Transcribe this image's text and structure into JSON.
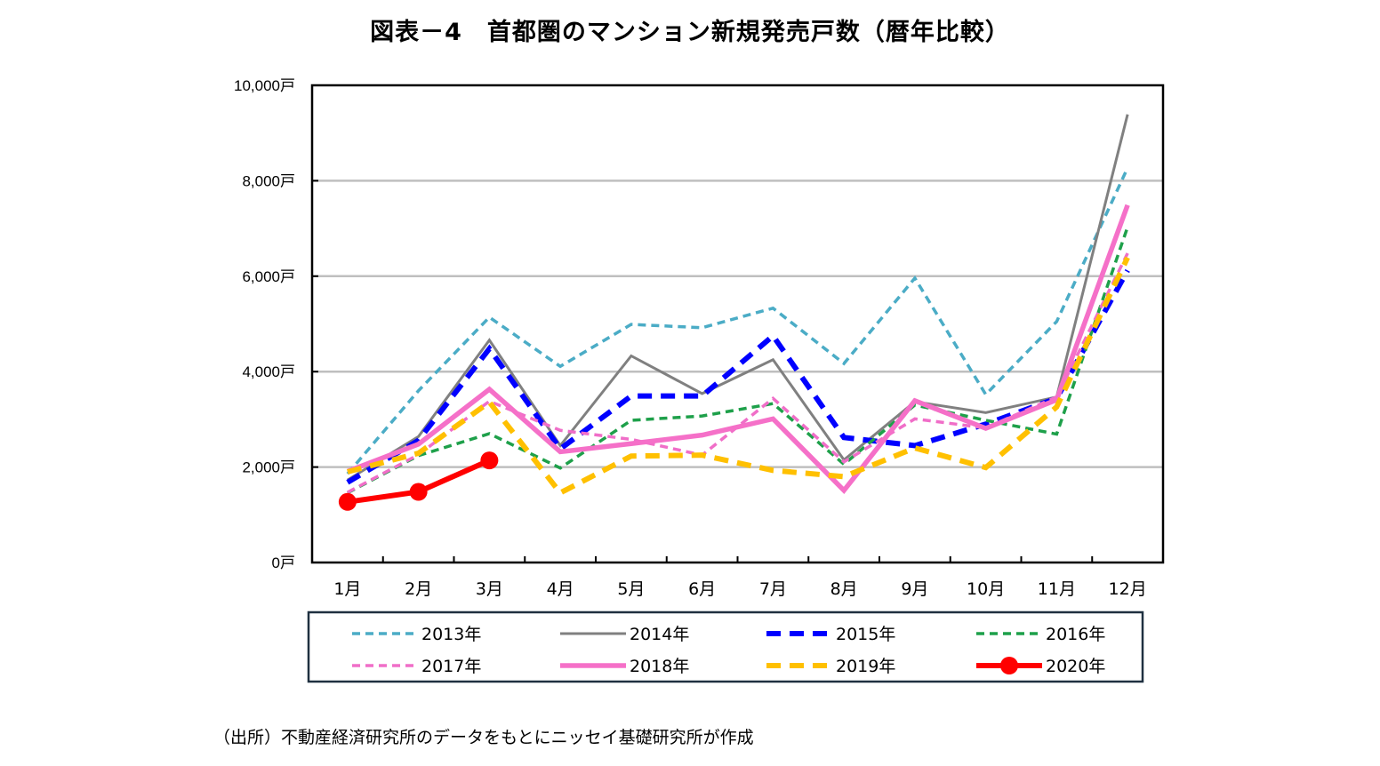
{
  "title": "図表－4　首都圏のマンション新規発売戸数（暦年比較）",
  "source": "（出所）不動産経済研究所のデータをもとにニッセイ基礎研究所が作成",
  "chart_data": {
    "type": "line",
    "title": "図表－4　首都圏のマンション新規発売戸数（暦年比較）",
    "xlabel": "",
    "ylabel": "",
    "categories": [
      "1月",
      "2月",
      "3月",
      "4月",
      "5月",
      "6月",
      "7月",
      "8月",
      "9月",
      "10月",
      "11月",
      "12月"
    ],
    "yticks": [
      0,
      2000,
      4000,
      6000,
      8000,
      10000
    ],
    "ytick_labels": [
      "0戸",
      "2,000戸",
      "4,000戸",
      "6,000戸",
      "8,000戸",
      "10,000戸"
    ],
    "ylim": [
      0,
      10000
    ],
    "grid": true,
    "legend_position": "bottom",
    "series": [
      {
        "name": "2013年",
        "color": "#4BACC6",
        "style": "dashed-thin",
        "values": [
          1860,
          3600,
          5140,
          4110,
          4990,
          4920,
          5330,
          4170,
          5960,
          3520,
          5050,
          8270
        ]
      },
      {
        "name": "2014年",
        "color": "#808080",
        "style": "solid-thin",
        "values": [
          1730,
          2640,
          4660,
          2450,
          4330,
          3540,
          4250,
          2150,
          3370,
          3140,
          3470,
          9390
        ]
      },
      {
        "name": "2015年",
        "color": "#0000FF",
        "style": "dashed-thick",
        "values": [
          1680,
          2560,
          4480,
          2380,
          3490,
          3490,
          4750,
          2620,
          2450,
          2900,
          3440,
          6120
        ]
      },
      {
        "name": "2016年",
        "color": "#1EA04A",
        "style": "dashed-thin",
        "values": [
          1460,
          2240,
          2700,
          1980,
          2980,
          3070,
          3330,
          2060,
          3300,
          2980,
          2690,
          7030
        ]
      },
      {
        "name": "2017年",
        "color": "#F06EC8",
        "style": "dashed-thin",
        "values": [
          1470,
          2260,
          3380,
          2770,
          2580,
          2250,
          3440,
          2110,
          3010,
          2820,
          3470,
          6480
        ]
      },
      {
        "name": "2018年",
        "color": "#F570C8",
        "style": "solid-thick",
        "values": [
          1910,
          2480,
          3630,
          2320,
          2490,
          2670,
          3010,
          1510,
          3390,
          2810,
          3410,
          7490
        ]
      },
      {
        "name": "2019年",
        "color": "#FFC000",
        "style": "dashed-thick",
        "values": [
          1900,
          2290,
          3360,
          1460,
          2230,
          2250,
          1930,
          1800,
          2400,
          1990,
          3260,
          6390
        ]
      },
      {
        "name": "2020年",
        "color": "#FF0000",
        "style": "solid-marker",
        "values": [
          1270,
          1480,
          2140,
          null,
          null,
          null,
          null,
          null,
          null,
          null,
          null,
          null
        ]
      }
    ]
  }
}
